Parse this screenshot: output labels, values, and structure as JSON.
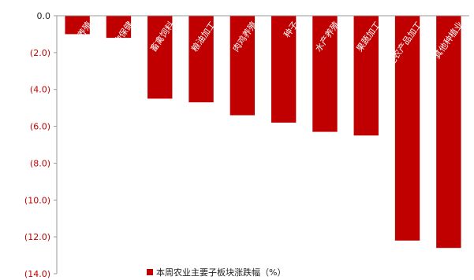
{
  "chart_data": {
    "type": "bar",
    "categories": [
      "生猪养殖",
      "动物保健",
      "畜禽饲料",
      "粮油加工",
      "肉鸡养殖",
      "种子",
      "水产养殖",
      "果蔬加工",
      "其他农产品加工",
      "其他种植业"
    ],
    "values": [
      -1.0,
      -1.2,
      -4.5,
      -4.7,
      -5.4,
      -5.8,
      -6.3,
      -6.5,
      -12.2,
      -12.6
    ],
    "yticks": [
      "0.0",
      "(2.0)",
      "(4.0)",
      "(6.0)",
      "(8.0)",
      "(10.0)",
      "(12.0)",
      "(14.0)"
    ],
    "ylim": [
      -14,
      0
    ],
    "legend": "本周农业主要子板块涨跌幅（%）",
    "legend_position": "bottom",
    "grid": false,
    "colors": {
      "bar": "#c00000",
      "positive_tick": "#222222",
      "negative_tick": "#c00000",
      "axis": "#999999"
    }
  }
}
